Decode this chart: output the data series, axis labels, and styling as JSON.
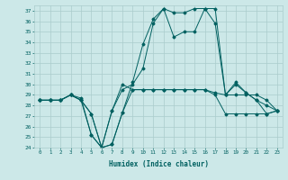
{
  "xlabel": "Humidex (Indice chaleur)",
  "xlim": [
    -0.5,
    23.5
  ],
  "ylim": [
    24,
    37.5
  ],
  "yticks": [
    24,
    25,
    26,
    27,
    28,
    29,
    30,
    31,
    32,
    33,
    34,
    35,
    36,
    37
  ],
  "xticks": [
    0,
    1,
    2,
    3,
    4,
    5,
    6,
    7,
    8,
    9,
    10,
    11,
    12,
    13,
    14,
    15,
    16,
    17,
    18,
    19,
    20,
    21,
    22,
    23
  ],
  "bg_color": "#cce8e8",
  "line_color": "#006060",
  "grid_color": "#aacccc",
  "series": [
    [
      28.5,
      28.5,
      28.5,
      29.0,
      28.5,
      25.2,
      24.0,
      24.3,
      27.3,
      29.5,
      29.5,
      29.5,
      29.5,
      29.5,
      29.5,
      29.5,
      29.5,
      29.0,
      27.2,
      27.2,
      27.2,
      27.2,
      27.2,
      27.5
    ],
    [
      28.5,
      28.5,
      28.5,
      29.0,
      28.7,
      25.2,
      24.0,
      27.5,
      29.5,
      30.0,
      31.5,
      35.8,
      37.2,
      36.8,
      36.8,
      37.2,
      37.2,
      35.8,
      29.0,
      30.0,
      29.2,
      28.5,
      27.2,
      27.5
    ],
    [
      28.5,
      28.5,
      28.5,
      29.0,
      28.5,
      27.2,
      24.0,
      24.3,
      27.3,
      30.2,
      33.8,
      36.2,
      37.2,
      34.5,
      35.0,
      35.0,
      37.2,
      37.2,
      29.0,
      30.2,
      29.2,
      28.5,
      28.0,
      27.5
    ],
    [
      28.5,
      28.5,
      28.5,
      29.0,
      28.5,
      27.2,
      24.0,
      27.5,
      30.0,
      29.5,
      29.5,
      29.5,
      29.5,
      29.5,
      29.5,
      29.5,
      29.5,
      29.2,
      29.0,
      29.0,
      29.0,
      29.0,
      28.5,
      27.5
    ]
  ]
}
